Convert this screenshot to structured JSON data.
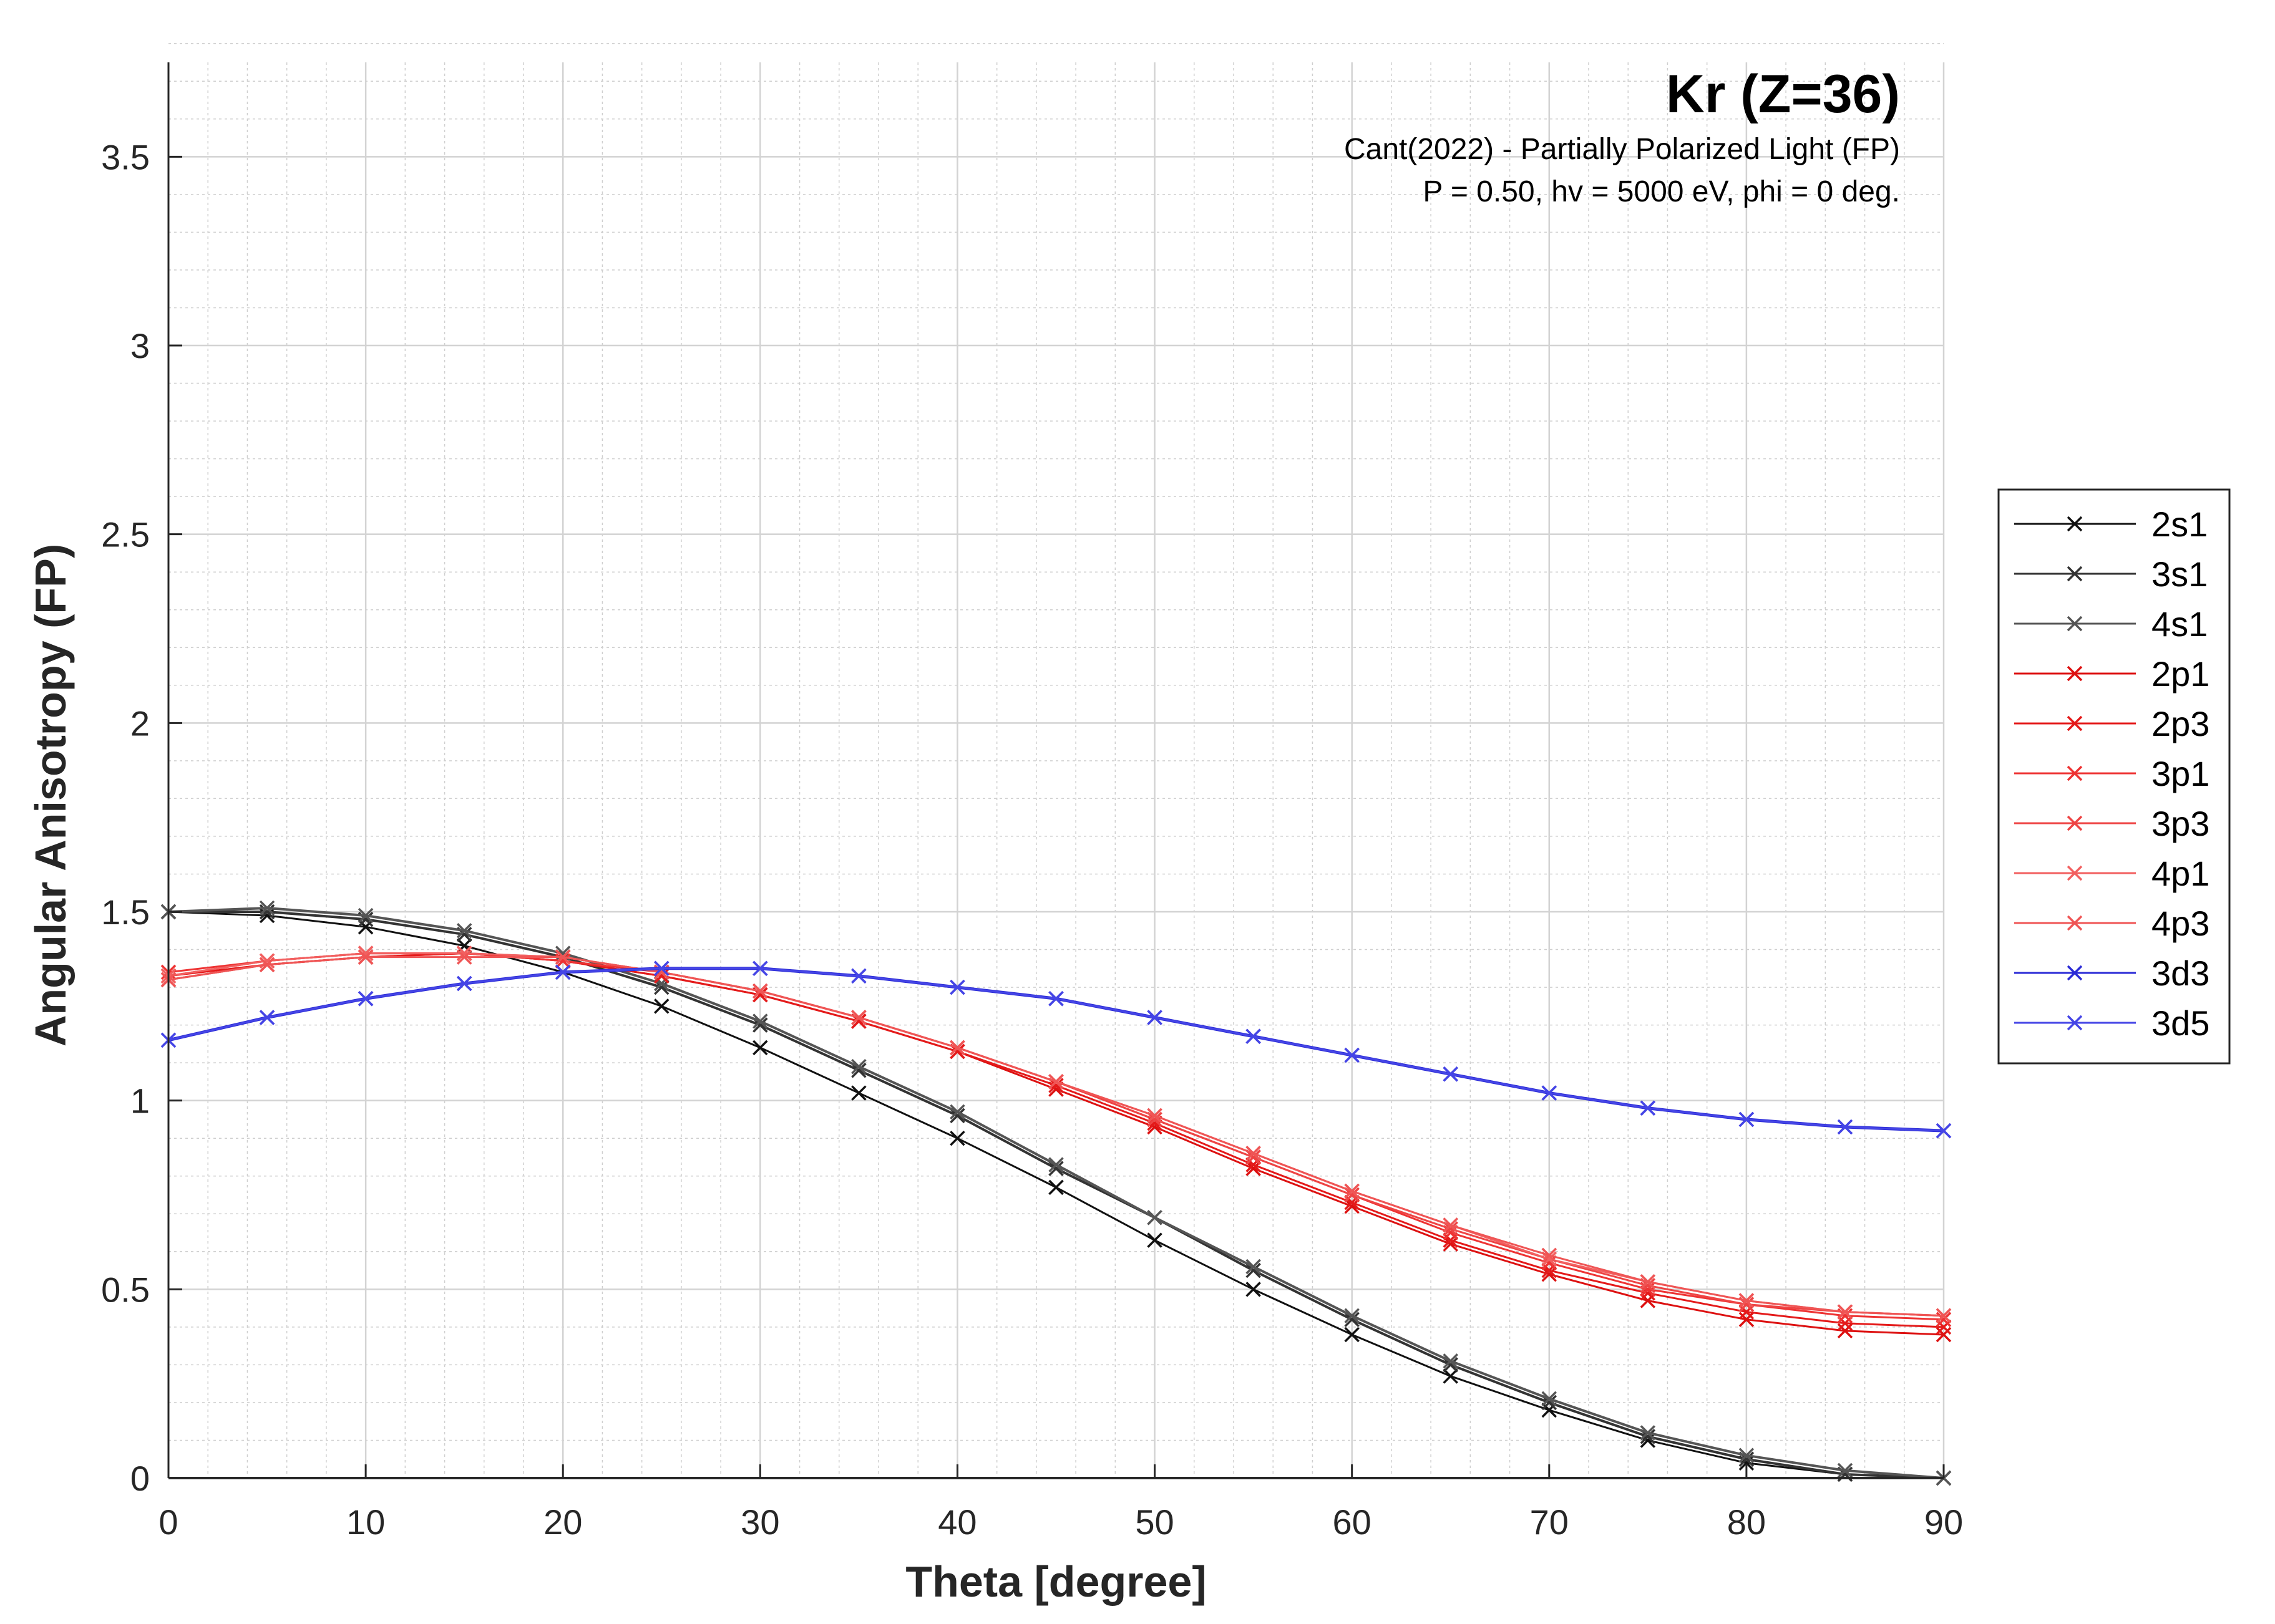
{
  "chart_data": {
    "type": "line",
    "title": "Kr (Z=36)",
    "subtitle_lines": [
      "Cant(2022) - Partially Polarized Light (FP)",
      "P = 0.50, hv = 5000 eV, phi = 0 deg."
    ],
    "xlabel": "Theta [degree]",
    "ylabel": "Angular Anisotropy (FP)",
    "xlim": [
      0,
      90
    ],
    "ylim": [
      0,
      3.75
    ],
    "x_ticks": [
      0,
      10,
      20,
      30,
      40,
      50,
      60,
      70,
      80,
      90
    ],
    "x_tick_labels": [
      "0",
      "10",
      "20",
      "30",
      "40",
      "50",
      "60",
      "70",
      "80",
      "90"
    ],
    "y_ticks": [
      0,
      0.5,
      1,
      1.5,
      2,
      2.5,
      3,
      3.5
    ],
    "y_tick_labels": [
      "0",
      "0.5",
      "1",
      "1.5",
      "2",
      "2.5",
      "3",
      "3.5"
    ],
    "grid": true,
    "minor_grid": true,
    "legend_position": "outside-right",
    "marker": "x",
    "x": [
      0,
      5,
      10,
      15,
      20,
      25,
      30,
      35,
      40,
      45,
      50,
      55,
      60,
      65,
      70,
      75,
      80,
      85,
      90
    ],
    "series": [
      {
        "name": "2s1",
        "color": "#111111",
        "stroke_width": 3,
        "values": [
          1.5,
          1.49,
          1.46,
          1.41,
          1.34,
          1.25,
          1.14,
          1.02,
          0.9,
          0.77,
          0.63,
          0.5,
          0.38,
          0.27,
          0.18,
          0.1,
          0.04,
          0.01,
          0.0
        ]
      },
      {
        "name": "3s1",
        "color": "#333333",
        "stroke_width": 4,
        "values": [
          1.5,
          1.5,
          1.48,
          1.44,
          1.38,
          1.3,
          1.2,
          1.08,
          0.96,
          0.82,
          0.69,
          0.55,
          0.42,
          0.3,
          0.2,
          0.11,
          0.05,
          0.01,
          0.0
        ]
      },
      {
        "name": "4s1",
        "color": "#555555",
        "stroke_width": 4,
        "values": [
          1.5,
          1.51,
          1.49,
          1.45,
          1.39,
          1.31,
          1.21,
          1.09,
          0.97,
          0.83,
          0.69,
          0.56,
          0.43,
          0.31,
          0.21,
          0.12,
          0.06,
          0.02,
          0.0
        ]
      },
      {
        "name": "2p1",
        "color": "#dd1111",
        "stroke_width": 3,
        "values": [
          1.32,
          1.36,
          1.38,
          1.39,
          1.37,
          1.33,
          1.28,
          1.21,
          1.13,
          1.03,
          0.93,
          0.82,
          0.72,
          0.62,
          0.54,
          0.47,
          0.42,
          0.39,
          0.38
        ]
      },
      {
        "name": "2p3",
        "color": "#e41a1a",
        "stroke_width": 3,
        "values": [
          1.33,
          1.36,
          1.38,
          1.39,
          1.37,
          1.33,
          1.28,
          1.21,
          1.13,
          1.04,
          0.94,
          0.83,
          0.73,
          0.63,
          0.55,
          0.49,
          0.44,
          0.41,
          0.4
        ]
      },
      {
        "name": "3p1",
        "color": "#ee3333",
        "stroke_width": 3,
        "values": [
          1.34,
          1.37,
          1.39,
          1.39,
          1.37,
          1.34,
          1.29,
          1.22,
          1.14,
          1.05,
          0.95,
          0.85,
          0.75,
          0.65,
          0.57,
          0.5,
          0.46,
          0.43,
          0.42
        ]
      },
      {
        "name": "3p3",
        "color": "#ee4444",
        "stroke_width": 3,
        "values": [
          1.33,
          1.37,
          1.39,
          1.39,
          1.38,
          1.34,
          1.29,
          1.22,
          1.14,
          1.05,
          0.95,
          0.85,
          0.75,
          0.66,
          0.58,
          0.51,
          0.46,
          0.44,
          0.43
        ]
      },
      {
        "name": "4p1",
        "color": "#f26060",
        "stroke_width": 3,
        "values": [
          1.33,
          1.37,
          1.39,
          1.39,
          1.38,
          1.34,
          1.29,
          1.22,
          1.14,
          1.05,
          0.96,
          0.86,
          0.76,
          0.67,
          0.58,
          0.52,
          0.47,
          0.44,
          0.43
        ]
      },
      {
        "name": "4p3",
        "color": "#ef5555",
        "stroke_width": 3,
        "values": [
          1.32,
          1.36,
          1.38,
          1.38,
          1.38,
          1.34,
          1.29,
          1.22,
          1.14,
          1.05,
          0.96,
          0.86,
          0.76,
          0.67,
          0.59,
          0.52,
          0.47,
          0.44,
          0.43
        ]
      },
      {
        "name": "3d3",
        "color": "#2b2bd6",
        "stroke_width": 5,
        "values": [
          1.16,
          1.22,
          1.27,
          1.31,
          1.34,
          1.35,
          1.35,
          1.33,
          1.3,
          1.27,
          1.22,
          1.17,
          1.12,
          1.07,
          1.02,
          0.98,
          0.95,
          0.93,
          0.92
        ]
      },
      {
        "name": "3d5",
        "color": "#4545e6",
        "stroke_width": 3,
        "values": [
          1.16,
          1.22,
          1.27,
          1.31,
          1.34,
          1.35,
          1.35,
          1.33,
          1.3,
          1.27,
          1.22,
          1.17,
          1.12,
          1.07,
          1.02,
          0.98,
          0.95,
          0.93,
          0.92
        ]
      }
    ]
  }
}
